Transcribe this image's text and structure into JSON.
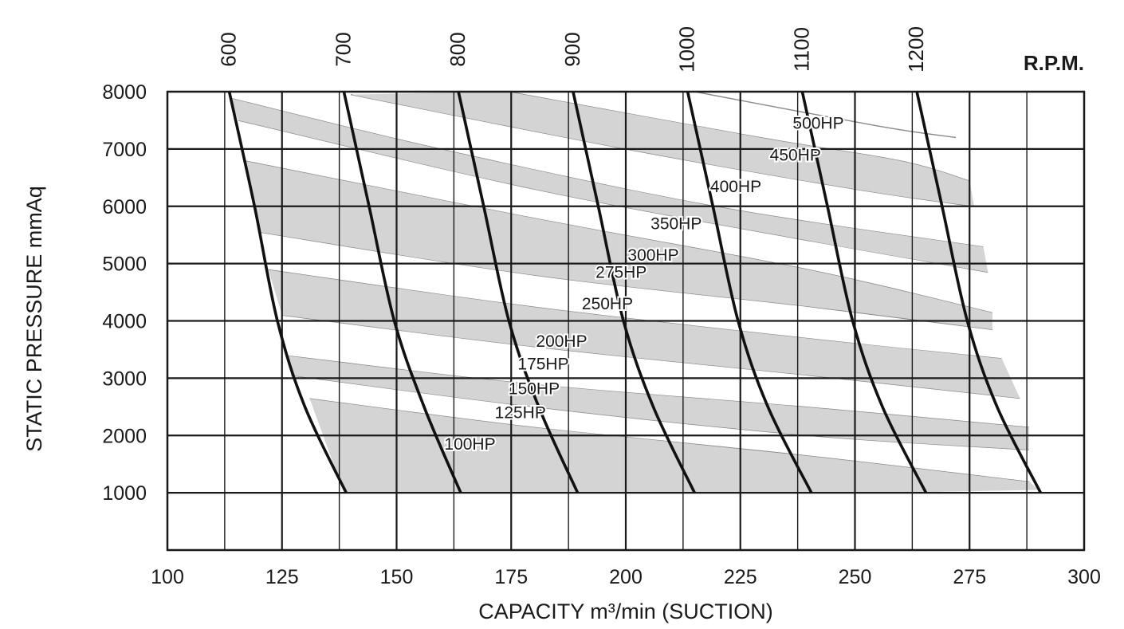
{
  "chart_data": {
    "type": "line",
    "title": "",
    "xlabel": "CAPACITY m³/min (SUCTION)",
    "ylabel": "STATIC PRESSURE mmAq",
    "rpm_unit": "R.P.M.",
    "xlim": [
      100,
      300
    ],
    "ylim": [
      0,
      8000
    ],
    "x_ticks": [
      "100",
      "125",
      "150",
      "175",
      "200",
      "225",
      "250",
      "275",
      "300"
    ],
    "y_ticks": [
      "1000",
      "2000",
      "3000",
      "4000",
      "5000",
      "6000",
      "7000",
      "8000"
    ],
    "grid": true,
    "rpm_curves": [
      {
        "name": "600",
        "points": [
          [
            113.5,
            8000
          ],
          [
            119,
            6000
          ],
          [
            124,
            4000
          ],
          [
            130,
            2500
          ],
          [
            139,
            1000
          ]
        ]
      },
      {
        "name": "700",
        "points": [
          [
            138.5,
            8000
          ],
          [
            144,
            6000
          ],
          [
            149.5,
            4000
          ],
          [
            156,
            2500
          ],
          [
            164,
            1000
          ]
        ]
      },
      {
        "name": "800",
        "points": [
          [
            163.5,
            8000
          ],
          [
            169,
            6000
          ],
          [
            174.5,
            4000
          ],
          [
            181,
            2500
          ],
          [
            189.5,
            1000
          ]
        ]
      },
      {
        "name": "900",
        "points": [
          [
            188.5,
            8000
          ],
          [
            194,
            6000
          ],
          [
            199.5,
            4000
          ],
          [
            206,
            2500
          ],
          [
            215,
            1000
          ]
        ]
      },
      {
        "name": "1000",
        "points": [
          [
            213.5,
            8000
          ],
          [
            219,
            6000
          ],
          [
            224.5,
            4000
          ],
          [
            231,
            2500
          ],
          [
            240.5,
            1000
          ]
        ]
      },
      {
        "name": "1100",
        "points": [
          [
            238.5,
            8000
          ],
          [
            244,
            6000
          ],
          [
            249.5,
            4000
          ],
          [
            256,
            2500
          ],
          [
            265.5,
            1000
          ]
        ]
      },
      {
        "name": "1200",
        "points": [
          [
            263.5,
            8000
          ],
          [
            269,
            6000
          ],
          [
            274.5,
            4000
          ],
          [
            281,
            2500
          ],
          [
            290.5,
            1000
          ]
        ]
      }
    ],
    "hp_bands": [
      {
        "name": "100HP",
        "upper": [
          [
            131,
            2650
          ],
          [
            180,
            2150
          ],
          [
            240,
            1650
          ],
          [
            288,
            1200
          ]
        ],
        "lower": [
          [
            138.5,
            1000
          ],
          [
            200,
            1000
          ],
          [
            250,
            1000
          ],
          [
            290,
            1050
          ]
        ],
        "label_at": [
          166,
          1750
        ]
      },
      {
        "name": "125HP",
        "upper": [
          [
            127,
            3050
          ],
          [
            180,
            2500
          ],
          [
            240,
            2000
          ],
          [
            288,
            1750
          ]
        ],
        "lower": [
          [
            131,
            2650
          ],
          [
            180,
            2150
          ],
          [
            240,
            1650
          ],
          [
            288,
            1200
          ]
        ],
        "label_at": [
          177,
          2300
        ]
      },
      {
        "name": "150HP",
        "upper": [
          [
            126,
            3400
          ],
          [
            180,
            2900
          ],
          [
            240,
            2500
          ],
          [
            288,
            2150
          ]
        ],
        "lower": [
          [
            127,
            3050
          ],
          [
            180,
            2500
          ],
          [
            240,
            2000
          ],
          [
            288,
            1750
          ]
        ],
        "label_at": [
          180,
          2720
        ]
      },
      {
        "name": "175HP",
        "upper": [
          [
            125,
            4100
          ],
          [
            180,
            3550
          ],
          [
            240,
            3050
          ],
          [
            286,
            2650
          ]
        ],
        "lower": [
          [
            126,
            3400
          ],
          [
            180,
            2900
          ],
          [
            240,
            2500
          ],
          [
            288,
            2150
          ]
        ],
        "label_at": [
          182,
          3150
        ]
      },
      {
        "name": "200HP",
        "upper": [
          [
            122,
            4900
          ],
          [
            180,
            4250
          ],
          [
            240,
            3700
          ],
          [
            282,
            3350
          ]
        ],
        "lower": [
          [
            125,
            4100
          ],
          [
            180,
            3550
          ],
          [
            240,
            3050
          ],
          [
            286,
            2650
          ]
        ],
        "label_at": [
          186,
          3550
        ]
      },
      {
        "name": "250HP",
        "upper": [
          [
            120,
            5550
          ],
          [
            180,
            4800
          ],
          [
            240,
            4250
          ],
          [
            280,
            3850
          ]
        ],
        "lower": [
          [
            122,
            4900
          ],
          [
            180,
            4250
          ],
          [
            240,
            3700
          ],
          [
            282,
            3350
          ]
        ],
        "label_at": [
          196,
          4200
        ]
      },
      {
        "name": "275HP",
        "upper": [
          [
            117,
            6800
          ],
          [
            180,
            5800
          ],
          [
            240,
            4900
          ],
          [
            280,
            4150
          ]
        ],
        "lower": [
          [
            120,
            5550
          ],
          [
            180,
            4800
          ],
          [
            240,
            4250
          ],
          [
            280,
            3850
          ]
        ],
        "label_at": [
          199,
          4750
        ]
      },
      {
        "name": "300HP",
        "upper": [
          [
            115.5,
            7500
          ],
          [
            180,
            6300
          ],
          [
            240,
            5400
          ],
          [
            279,
            4850
          ]
        ],
        "lower": [
          [
            117,
            6800
          ],
          [
            180,
            5800
          ],
          [
            240,
            4900
          ],
          [
            280,
            4150
          ]
        ],
        "label_at": [
          206,
          5050
        ]
      },
      {
        "name": "350HP",
        "upper": [
          [
            113.5,
            7900
          ],
          [
            160,
            7000
          ],
          [
            220,
            6000
          ],
          [
            278,
            5300
          ]
        ],
        "lower": [
          [
            115.5,
            7500
          ],
          [
            180,
            6300
          ],
          [
            240,
            5400
          ],
          [
            279,
            4850
          ]
        ],
        "label_at": [
          211,
          5600
        ]
      },
      {
        "name": "400HP",
        "upper": [
          [
            140,
            7950
          ],
          [
            200,
            7000
          ],
          [
            250,
            6300
          ],
          [
            276,
            6000
          ]
        ],
        "lower": [
          [
            113.5,
            7900
          ],
          [
            160,
            7000
          ],
          [
            220,
            6000
          ],
          [
            278,
            5300
          ]
        ],
        "label_at": [
          224,
          6250
        ]
      },
      {
        "name": "450HP",
        "upper": [
          [
            175,
            8000
          ],
          [
            230,
            7200
          ],
          [
            260,
            6800
          ],
          [
            275,
            6450
          ]
        ],
        "lower": [
          [
            140,
            7950
          ],
          [
            200,
            7000
          ],
          [
            250,
            6300
          ],
          [
            276,
            6000
          ]
        ],
        "label_at": [
          237,
          6800
        ]
      },
      {
        "name": "500HP",
        "upper": [
          [
            215,
            8000
          ],
          [
            255,
            7400
          ],
          [
            272,
            7200
          ]
        ],
        "lower": [
          [
            175,
            8000
          ],
          [
            230,
            7200
          ],
          [
            260,
            6800
          ],
          [
            275,
            6450
          ]
        ],
        "label_at": [
          242,
          7350
        ]
      }
    ]
  }
}
